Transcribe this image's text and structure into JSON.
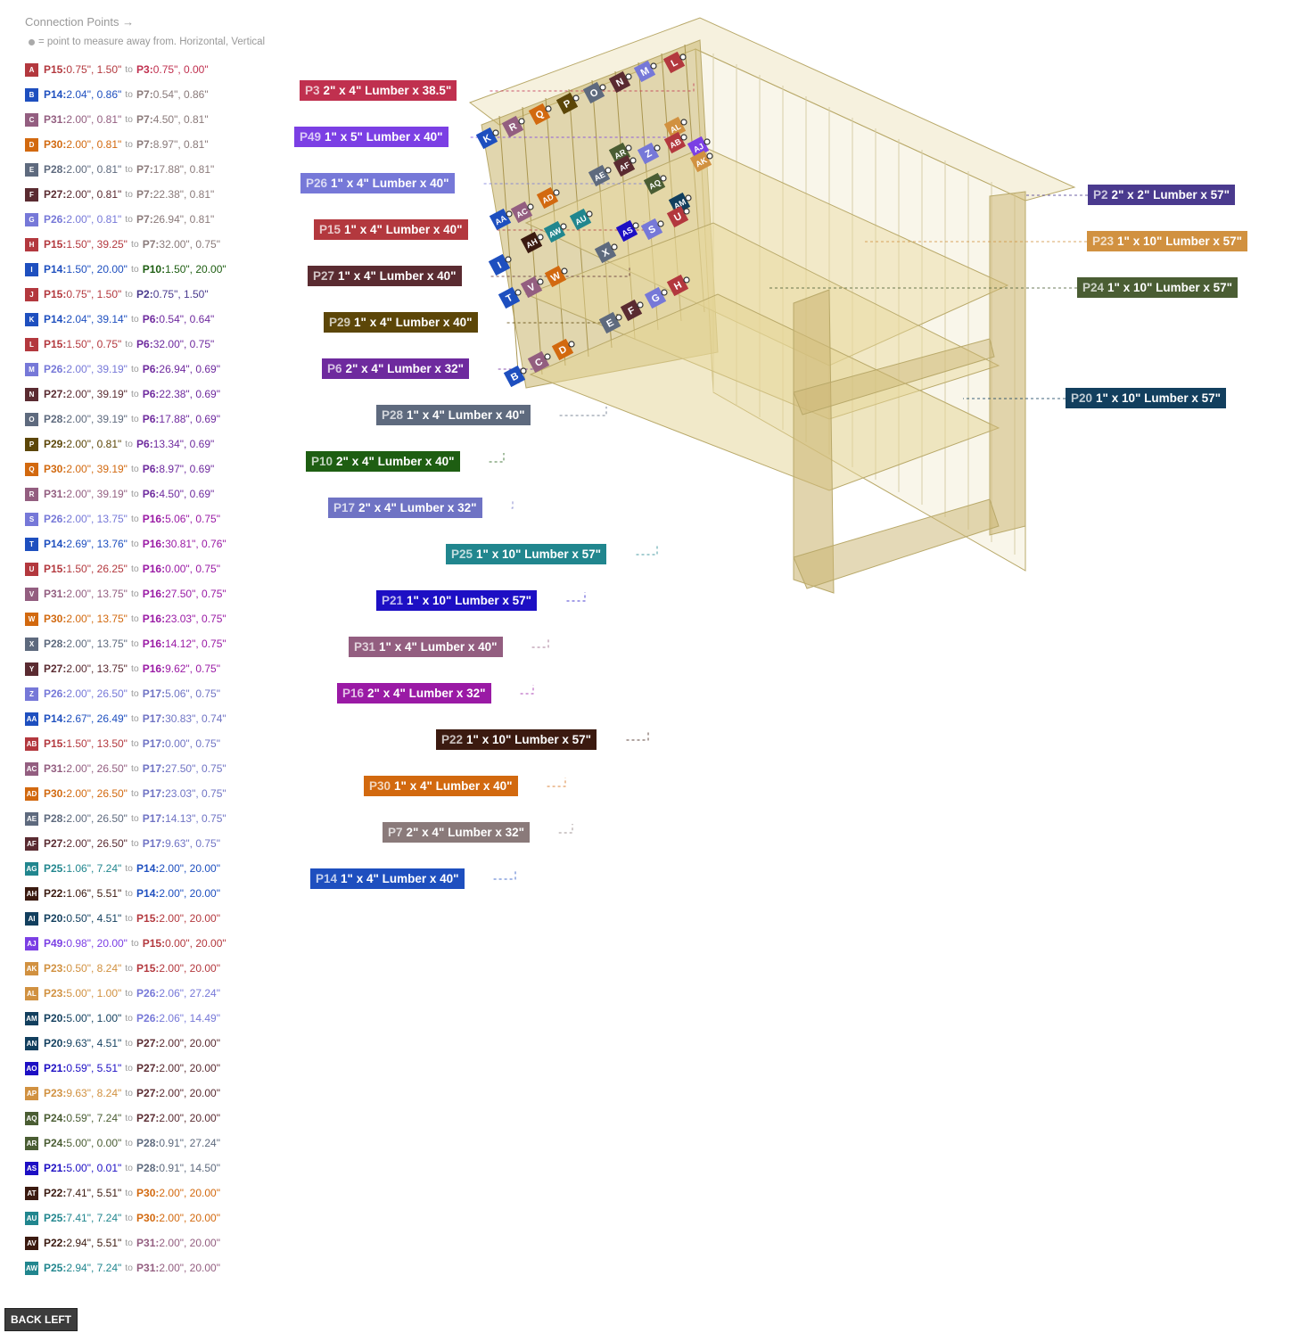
{
  "header": {
    "title": "Connection Points →",
    "subtitle": "= point to measure away from. Horizontal, Vertical",
    "separator": "to"
  },
  "colors": {
    "P2": "#4a3a8e",
    "P3": "#c0304f",
    "P6": "#6e2a9e",
    "P7": "#8a7a7a",
    "P10": "#1e5e12",
    "P14": "#1e4fbf",
    "P15": "#b3383e",
    "P16": "#9a1aa5",
    "P17": "#6f73c4",
    "P20": "#123f5e",
    "P21": "#1d0fc4",
    "P22": "#3b1a10",
    "P23": "#d19140",
    "P24": "#4a5d33",
    "P25": "#21868e",
    "P26": "#7678d8",
    "P27": "#5a2b31",
    "P28": "#5e6a7e",
    "P29": "#5c4608",
    "P30": "#d2690f",
    "P31": "#935e80",
    "P49": "#7b3fe4"
  },
  "connections": [
    {
      "id": "A",
      "a": "P15",
      "av": "0.75\", 1.50\"",
      "b": "P3",
      "bv": "0.75\", 0.00\""
    },
    {
      "id": "B",
      "a": "P14",
      "av": "2.04\", 0.86\"",
      "b": "P7",
      "bv": "0.54\", 0.86\""
    },
    {
      "id": "C",
      "a": "P31",
      "av": "2.00\", 0.81\"",
      "b": "P7",
      "bv": "4.50\", 0.81\""
    },
    {
      "id": "D",
      "a": "P30",
      "av": "2.00\", 0.81\"",
      "b": "P7",
      "bv": "8.97\", 0.81\""
    },
    {
      "id": "E",
      "a": "P28",
      "av": "2.00\", 0.81\"",
      "b": "P7",
      "bv": "17.88\", 0.81\""
    },
    {
      "id": "F",
      "a": "P27",
      "av": "2.00\", 0.81\"",
      "b": "P7",
      "bv": "22.38\", 0.81\""
    },
    {
      "id": "G",
      "a": "P26",
      "av": "2.00\", 0.81\"",
      "b": "P7",
      "bv": "26.94\", 0.81\""
    },
    {
      "id": "H",
      "a": "P15",
      "av": "1.50\", 39.25\"",
      "b": "P7",
      "bv": "32.00\", 0.75\""
    },
    {
      "id": "I",
      "a": "P14",
      "av": "1.50\", 20.00\"",
      "b": "P10",
      "bv": "1.50\", 20.00\""
    },
    {
      "id": "J",
      "a": "P15",
      "av": "0.75\", 1.50\"",
      "b": "P2",
      "bv": "0.75\", 1.50\""
    },
    {
      "id": "K",
      "a": "P14",
      "av": "2.04\", 39.14\"",
      "b": "P6",
      "bv": "0.54\", 0.64\""
    },
    {
      "id": "L",
      "a": "P15",
      "av": "1.50\", 0.75\"",
      "b": "P6",
      "bv": "32.00\", 0.75\""
    },
    {
      "id": "M",
      "a": "P26",
      "av": "2.00\", 39.19\"",
      "b": "P6",
      "bv": "26.94\", 0.69\""
    },
    {
      "id": "N",
      "a": "P27",
      "av": "2.00\", 39.19\"",
      "b": "P6",
      "bv": "22.38\", 0.69\""
    },
    {
      "id": "O",
      "a": "P28",
      "av": "2.00\", 39.19\"",
      "b": "P6",
      "bv": "17.88\", 0.69\""
    },
    {
      "id": "P",
      "a": "P29",
      "av": "2.00\", 0.81\"",
      "b": "P6",
      "bv": "13.34\", 0.69\""
    },
    {
      "id": "Q",
      "a": "P30",
      "av": "2.00\", 39.19\"",
      "b": "P6",
      "bv": "8.97\", 0.69\""
    },
    {
      "id": "R",
      "a": "P31",
      "av": "2.00\", 39.19\"",
      "b": "P6",
      "bv": "4.50\", 0.69\""
    },
    {
      "id": "S",
      "a": "P26",
      "av": "2.00\", 13.75\"",
      "b": "P16",
      "bv": "5.06\", 0.75\""
    },
    {
      "id": "T",
      "a": "P14",
      "av": "2.69\", 13.76\"",
      "b": "P16",
      "bv": "30.81\", 0.76\""
    },
    {
      "id": "U",
      "a": "P15",
      "av": "1.50\", 26.25\"",
      "b": "P16",
      "bv": "0.00\", 0.75\""
    },
    {
      "id": "V",
      "a": "P31",
      "av": "2.00\", 13.75\"",
      "b": "P16",
      "bv": "27.50\", 0.75\""
    },
    {
      "id": "W",
      "a": "P30",
      "av": "2.00\", 13.75\"",
      "b": "P16",
      "bv": "23.03\", 0.75\""
    },
    {
      "id": "X",
      "a": "P28",
      "av": "2.00\", 13.75\"",
      "b": "P16",
      "bv": "14.12\", 0.75\""
    },
    {
      "id": "Y",
      "a": "P27",
      "av": "2.00\", 13.75\"",
      "b": "P16",
      "bv": "9.62\", 0.75\""
    },
    {
      "id": "Z",
      "a": "P26",
      "av": "2.00\", 26.50\"",
      "b": "P17",
      "bv": "5.06\", 0.75\""
    },
    {
      "id": "AA",
      "a": "P14",
      "av": "2.67\", 26.49\"",
      "b": "P17",
      "bv": "30.83\", 0.74\""
    },
    {
      "id": "AB",
      "a": "P15",
      "av": "1.50\", 13.50\"",
      "b": "P17",
      "bv": "0.00\", 0.75\""
    },
    {
      "id": "AC",
      "a": "P31",
      "av": "2.00\", 26.50\"",
      "b": "P17",
      "bv": "27.50\", 0.75\""
    },
    {
      "id": "AD",
      "a": "P30",
      "av": "2.00\", 26.50\"",
      "b": "P17",
      "bv": "23.03\", 0.75\""
    },
    {
      "id": "AE",
      "a": "P28",
      "av": "2.00\", 26.50\"",
      "b": "P17",
      "bv": "14.13\", 0.75\""
    },
    {
      "id": "AF",
      "a": "P27",
      "av": "2.00\", 26.50\"",
      "b": "P17",
      "bv": "9.63\", 0.75\""
    },
    {
      "id": "AG",
      "a": "P25",
      "av": "1.06\", 7.24\"",
      "b": "P14",
      "bv": "2.00\", 20.00\""
    },
    {
      "id": "AH",
      "a": "P22",
      "av": "1.06\", 5.51\"",
      "b": "P14",
      "bv": "2.00\", 20.00\""
    },
    {
      "id": "AI",
      "a": "P20",
      "av": "0.50\", 4.51\"",
      "b": "P15",
      "bv": "2.00\", 20.00\""
    },
    {
      "id": "AJ",
      "a": "P49",
      "av": "0.98\", 20.00\"",
      "b": "P15",
      "bv": "0.00\", 20.00\""
    },
    {
      "id": "AK",
      "a": "P23",
      "av": "0.50\", 8.24\"",
      "b": "P15",
      "bv": "2.00\", 20.00\""
    },
    {
      "id": "AL",
      "a": "P23",
      "av": "5.00\", 1.00\"",
      "b": "P26",
      "bv": "2.06\", 27.24\""
    },
    {
      "id": "AM",
      "a": "P20",
      "av": "5.00\", 1.00\"",
      "b": "P26",
      "bv": "2.06\", 14.49\""
    },
    {
      "id": "AN",
      "a": "P20",
      "av": "9.63\", 4.51\"",
      "b": "P27",
      "bv": "2.00\", 20.00\""
    },
    {
      "id": "AO",
      "a": "P21",
      "av": "0.59\", 5.51\"",
      "b": "P27",
      "bv": "2.00\", 20.00\""
    },
    {
      "id": "AP",
      "a": "P23",
      "av": "9.63\", 8.24\"",
      "b": "P27",
      "bv": "2.00\", 20.00\""
    },
    {
      "id": "AQ",
      "a": "P24",
      "av": "0.59\", 7.24\"",
      "b": "P27",
      "bv": "2.00\", 20.00\""
    },
    {
      "id": "AR",
      "a": "P24",
      "av": "5.00\", 0.00\"",
      "b": "P28",
      "bv": "0.91\", 27.24\""
    },
    {
      "id": "AS",
      "a": "P21",
      "av": "5.00\", 0.01\"",
      "b": "P28",
      "bv": "0.91\", 14.50\""
    },
    {
      "id": "AT",
      "a": "P22",
      "av": "7.41\", 5.51\"",
      "b": "P30",
      "bv": "2.00\", 20.00\""
    },
    {
      "id": "AU",
      "a": "P25",
      "av": "7.41\", 7.24\"",
      "b": "P30",
      "bv": "2.00\", 20.00\""
    },
    {
      "id": "AV",
      "a": "P22",
      "av": "2.94\", 5.51\"",
      "b": "P31",
      "bv": "2.00\", 20.00\""
    },
    {
      "id": "AW",
      "a": "P25",
      "av": "2.94\", 7.24\"",
      "b": "P31",
      "bv": "2.00\", 20.00\""
    }
  ],
  "part_labels": [
    {
      "id": "P3",
      "desc": "2\" x 4\" Lumber  x 38.5\""
    },
    {
      "id": "P49",
      "desc": "1\" x 5\" Lumber x 40\""
    },
    {
      "id": "P26",
      "desc": "1\" x 4\" Lumber  x 40\""
    },
    {
      "id": "P15",
      "desc": "1\" x 4\" Lumber  x 40\""
    },
    {
      "id": "P27",
      "desc": "1\" x 4\" Lumber  x 40\""
    },
    {
      "id": "P29",
      "desc": "1\" x 4\" Lumber  x 40\""
    },
    {
      "id": "P6",
      "desc": "2\" x 4\" Lumber  x 32\""
    },
    {
      "id": "P28",
      "desc": "1\" x 4\" Lumber  x 40\""
    },
    {
      "id": "P10",
      "desc": "2\" x 4\" Lumber  x 40\""
    },
    {
      "id": "P17",
      "desc": "2\" x 4\" Lumber  x 32\""
    },
    {
      "id": "P25",
      "desc": "1\" x 10\" Lumber  x 57\""
    },
    {
      "id": "P21",
      "desc": "1\" x 10\" Lumber  x 57\""
    },
    {
      "id": "P31",
      "desc": "1\" x 4\" Lumber  x 40\""
    },
    {
      "id": "P16",
      "desc": "2\" x 4\" Lumber  x 32\""
    },
    {
      "id": "P22",
      "desc": "1\" x 10\" Lumber  x 57\""
    },
    {
      "id": "P30",
      "desc": "1\" x 4\" Lumber  x 40\""
    },
    {
      "id": "P7",
      "desc": "2\" x 4\" Lumber  x 32\""
    },
    {
      "id": "P14",
      "desc": "1\" x 4\" Lumber  x 40\""
    },
    {
      "id": "P2",
      "desc": "2\" x 2\" Lumber x 57\""
    },
    {
      "id": "P23",
      "desc": "1\" x 10\" Lumber  x 57\""
    },
    {
      "id": "P24",
      "desc": "1\" x 10\" Lumber  x 57\""
    },
    {
      "id": "P20",
      "desc": "1\" x 10\" Lumber  x 57\""
    }
  ],
  "model_markers": [
    "K",
    "R",
    "Q",
    "P",
    "O",
    "N",
    "M",
    "L",
    "AL",
    "AB",
    "AJ",
    "AK",
    "AR",
    "AF",
    "Z",
    "AE",
    "AQ",
    "AM",
    "U",
    "AD",
    "AC",
    "AA",
    "AU",
    "AW",
    "AH",
    "AS",
    "S",
    "X",
    "I",
    "W",
    "T",
    "V",
    "H",
    "G",
    "E",
    "F",
    "D",
    "C",
    "B"
  ],
  "footer": {
    "back_label": "BACK LEFT"
  }
}
